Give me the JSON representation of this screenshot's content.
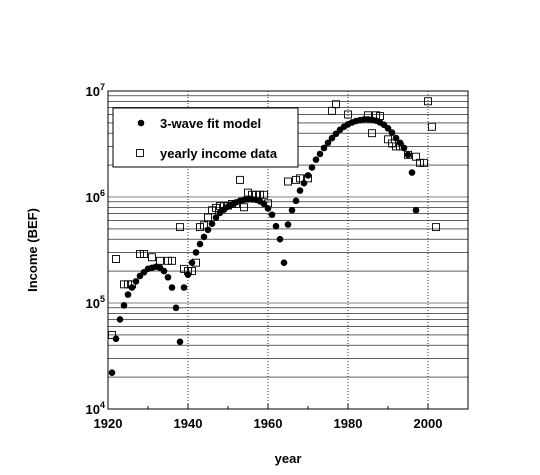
{
  "chart_data": {
    "type": "scatter",
    "xlabel": "year",
    "ylabel": "Income (BEF)",
    "xlim": [
      1920,
      2010
    ],
    "ylim": [
      10000,
      10000000
    ],
    "yscale": "log",
    "grid": true,
    "legend_position": "top-left",
    "x_ticks": [
      1920,
      1940,
      1960,
      1980,
      2000
    ],
    "y_ticks": [
      {
        "value": 10000,
        "base": "10",
        "exp": "4"
      },
      {
        "value": 100000,
        "base": "10",
        "exp": "5"
      },
      {
        "value": 1000000,
        "base": "10",
        "exp": "6"
      },
      {
        "value": 10000000,
        "base": "10",
        "exp": "7"
      }
    ],
    "series": [
      {
        "name": "3-wave fit model",
        "marker": "filled-circle",
        "points": [
          [
            1921,
            22000
          ],
          [
            1922,
            46000
          ],
          [
            1923,
            70000
          ],
          [
            1924,
            95000
          ],
          [
            1925,
            120000
          ],
          [
            1926,
            140000
          ],
          [
            1927,
            160000
          ],
          [
            1928,
            180000
          ],
          [
            1929,
            195000
          ],
          [
            1930,
            210000
          ],
          [
            1931,
            215000
          ],
          [
            1932,
            220000
          ],
          [
            1933,
            215000
          ],
          [
            1934,
            200000
          ],
          [
            1935,
            175000
          ],
          [
            1936,
            140000
          ],
          [
            1937,
            90000
          ],
          [
            1938,
            43000
          ],
          [
            1939,
            140000
          ],
          [
            1940,
            185000
          ],
          [
            1941,
            240000
          ],
          [
            1942,
            300000
          ],
          [
            1943,
            360000
          ],
          [
            1944,
            420000
          ],
          [
            1945,
            490000
          ],
          [
            1946,
            560000
          ],
          [
            1947,
            640000
          ],
          [
            1948,
            710000
          ],
          [
            1949,
            760000
          ],
          [
            1950,
            810000
          ],
          [
            1951,
            850000
          ],
          [
            1952,
            890000
          ],
          [
            1953,
            920000
          ],
          [
            1954,
            940000
          ],
          [
            1955,
            950000
          ],
          [
            1956,
            950000
          ],
          [
            1957,
            940000
          ],
          [
            1958,
            910000
          ],
          [
            1959,
            860000
          ],
          [
            1960,
            780000
          ],
          [
            1961,
            680000
          ],
          [
            1962,
            530000
          ],
          [
            1963,
            400000
          ],
          [
            1964,
            240000
          ],
          [
            1965,
            550000
          ],
          [
            1966,
            750000
          ],
          [
            1967,
            920000
          ],
          [
            1968,
            1150000
          ],
          [
            1969,
            1350000
          ],
          [
            1970,
            1600000
          ],
          [
            1971,
            1900000
          ],
          [
            1972,
            2250000
          ],
          [
            1973,
            2550000
          ],
          [
            1974,
            2900000
          ],
          [
            1975,
            3250000
          ],
          [
            1976,
            3600000
          ],
          [
            1977,
            3950000
          ],
          [
            1978,
            4300000
          ],
          [
            1979,
            4600000
          ],
          [
            1980,
            4850000
          ],
          [
            1981,
            5050000
          ],
          [
            1982,
            5200000
          ],
          [
            1983,
            5300000
          ],
          [
            1984,
            5400000
          ],
          [
            1985,
            5400000
          ],
          [
            1986,
            5350000
          ],
          [
            1987,
            5250000
          ],
          [
            1988,
            5050000
          ],
          [
            1989,
            4800000
          ],
          [
            1990,
            4450000
          ],
          [
            1991,
            4050000
          ],
          [
            1992,
            3600000
          ],
          [
            1993,
            3250000
          ],
          [
            1994,
            2900000
          ],
          [
            1995,
            2500000
          ],
          [
            1996,
            1700000
          ],
          [
            1997,
            750000
          ]
        ]
      },
      {
        "name": "yearly income data",
        "marker": "open-square",
        "points": [
          [
            1921,
            50000
          ],
          [
            1922,
            260000
          ],
          [
            1924,
            150000
          ],
          [
            1925,
            150000
          ],
          [
            1926,
            150000
          ],
          [
            1928,
            290000
          ],
          [
            1929,
            290000
          ],
          [
            1931,
            270000
          ],
          [
            1933,
            250000
          ],
          [
            1935,
            250000
          ],
          [
            1936,
            250000
          ],
          [
            1938,
            520000
          ],
          [
            1939,
            210000
          ],
          [
            1940,
            200000
          ],
          [
            1941,
            200000
          ],
          [
            1942,
            240000
          ],
          [
            1943,
            520000
          ],
          [
            1944,
            540000
          ],
          [
            1945,
            640000
          ],
          [
            1946,
            750000
          ],
          [
            1947,
            790000
          ],
          [
            1948,
            820000
          ],
          [
            1949,
            820000
          ],
          [
            1950,
            830000
          ],
          [
            1951,
            860000
          ],
          [
            1952,
            860000
          ],
          [
            1953,
            1450000
          ],
          [
            1954,
            800000
          ],
          [
            1955,
            1100000
          ],
          [
            1956,
            1050000
          ],
          [
            1957,
            1050000
          ],
          [
            1958,
            1050000
          ],
          [
            1959,
            1050000
          ],
          [
            1960,
            870000
          ],
          [
            1965,
            1400000
          ],
          [
            1967,
            1450000
          ],
          [
            1968,
            1500000
          ],
          [
            1970,
            1500000
          ],
          [
            1976,
            6500000
          ],
          [
            1977,
            7500000
          ],
          [
            1980,
            6000000
          ],
          [
            1985,
            5900000
          ],
          [
            1986,
            4000000
          ],
          [
            1987,
            5900000
          ],
          [
            1988,
            5800000
          ],
          [
            1990,
            3500000
          ],
          [
            1991,
            3200000
          ],
          [
            1992,
            3000000
          ],
          [
            1993,
            3000000
          ],
          [
            1995,
            2500000
          ],
          [
            1997,
            2400000
          ],
          [
            1998,
            2100000
          ],
          [
            1999,
            2100000
          ],
          [
            2000,
            8000000
          ],
          [
            2001,
            4600000
          ],
          [
            2002,
            520000
          ]
        ]
      }
    ]
  }
}
